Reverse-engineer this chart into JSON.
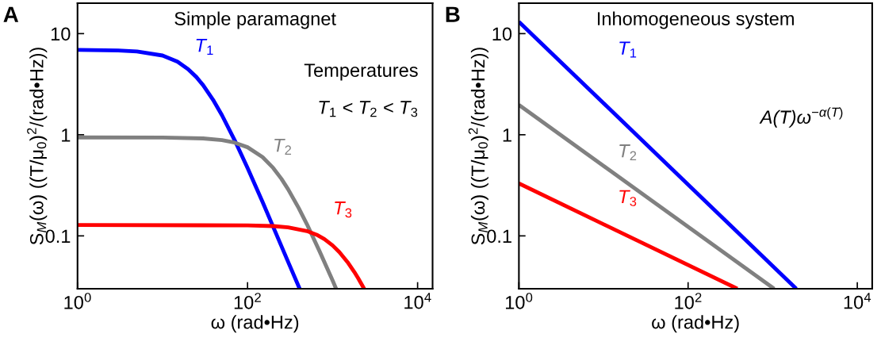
{
  "chart_data": [
    {
      "type": "line",
      "title": "Simple paramagnet",
      "xlabel": "ω (rad•Hz)",
      "ylabel": "S$_{M}$(ω) ((T/μ$_{0}$)$^{2}$/(rad•Hz))",
      "log": "xy",
      "xlim": [
        1,
        15000
      ],
      "ylim": [
        0.03,
        20
      ],
      "xticks": [
        {
          "value": 1,
          "label": "10$^{0}$"
        },
        {
          "value": 100,
          "label": "10$^{2}$"
        },
        {
          "value": 10000,
          "label": "10$^{4}$"
        }
      ],
      "yticks": [
        0.1,
        1,
        10
      ],
      "grid": false,
      "legend": false,
      "series": [
        {
          "name": "T$_{1}$",
          "color": "#0000ff",
          "x": [
            1,
            3,
            5,
            10,
            15,
            20,
            25,
            30,
            40,
            50,
            70,
            100,
            150,
            200,
            300,
            410
          ],
          "values": [
            6.9,
            6.82,
            6.67,
            6.07,
            5.27,
            4.45,
            3.72,
            3.09,
            2.16,
            1.56,
            0.894,
            0.469,
            0.217,
            0.123,
            0.0553,
            0.03
          ]
        },
        {
          "name": "T$_{2}$",
          "color": "#808080",
          "x": [
            1,
            10,
            30,
            50,
            70,
            100,
            150,
            200,
            250,
            300,
            400,
            500,
            700,
            1000,
            1100
          ],
          "values": [
            0.94,
            0.938,
            0.919,
            0.885,
            0.837,
            0.752,
            0.602,
            0.47,
            0.367,
            0.289,
            0.188,
            0.13,
            0.0709,
            0.0362,
            0.03
          ]
        },
        {
          "name": "T$_{3}$",
          "color": "#ff0000",
          "x": [
            1,
            100,
            200,
            300,
            500,
            650,
            800,
            1000,
            1200,
            1500,
            1800,
            2000,
            2350
          ],
          "values": [
            0.128,
            0.127,
            0.125,
            0.1215,
            0.1116,
            0.1025,
            0.0929,
            0.0805,
            0.0692,
            0.055,
            0.044,
            0.0381,
            0.03
          ]
        }
      ],
      "annotations": [
        "A",
        "Temperatures",
        "T$_{1}$ < T$_{2}$ < T$_{3}$"
      ]
    },
    {
      "type": "line",
      "title": "Inhomogeneous system",
      "xlabel": "ω (rad•Hz)",
      "ylabel": "S$_{M}$(ω) ((T/μ$_{0}$)$^{2}$/(rad•Hz))",
      "log": "xy",
      "xlim": [
        1,
        15000
      ],
      "ylim": [
        0.03,
        20
      ],
      "xticks": [
        {
          "value": 1,
          "label": "10$^{0}$"
        },
        {
          "value": 100,
          "label": "10$^{2}$"
        },
        {
          "value": 10000,
          "label": "10$^{4}$"
        }
      ],
      "yticks": [
        0.1,
        1,
        10
      ],
      "grid": false,
      "legend": false,
      "series": [
        {
          "name": "T$_{1}$",
          "color": "#0000ff",
          "x": [
            1,
            1900
          ],
          "values": [
            13.1,
            0.03
          ]
        },
        {
          "name": "T$_{2}$",
          "color": "#808080",
          "x": [
            1,
            1040
          ],
          "values": [
            1.97,
            0.03
          ]
        },
        {
          "name": "T$_{3}$",
          "color": "#ff0000",
          "x": [
            1,
            382
          ],
          "values": [
            0.33,
            0.03
          ]
        }
      ],
      "annotations": [
        "B",
        "A(T)ω$^{−α(T)}$"
      ]
    }
  ]
}
